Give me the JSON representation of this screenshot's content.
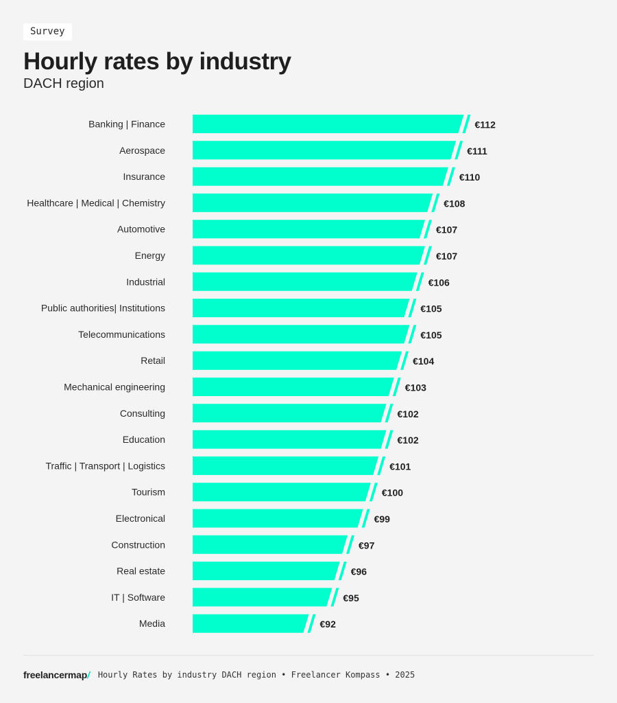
{
  "header": {
    "tag": "Survey",
    "title": "Hourly rates by industry",
    "subtitle": "DACH region"
  },
  "chart_data": {
    "type": "bar",
    "orientation": "horizontal",
    "categories": [
      "Banking | Finance",
      "Aerospace",
      "Insurance",
      "Healthcare | Medical | Chemistry",
      "Automotive",
      "Energy",
      "Industrial",
      "Public authorities| Institutions",
      "Telecommunications",
      "Retail",
      "Mechanical engineering",
      "Consulting",
      "Education",
      "Traffic | Transport | Logistics",
      "Tourism",
      "Electronical",
      "Construction",
      "Real estate",
      "IT | Software",
      "Media"
    ],
    "values": [
      112,
      111,
      110,
      108,
      107,
      107,
      106,
      105,
      105,
      104,
      103,
      102,
      102,
      101,
      100,
      99,
      97,
      96,
      95,
      92
    ],
    "value_labels": [
      "€112",
      "€111",
      "€110",
      "€108",
      "€107",
      "€107",
      "€106",
      "€105",
      "€105",
      "€104",
      "€103",
      "€102",
      "€102",
      "€101",
      "€100",
      "€99",
      "€97",
      "€96",
      "€95",
      "€92"
    ],
    "title": "Hourly rates by industry",
    "subtitle": "DACH region",
    "xlabel": "",
    "ylabel": "",
    "axis_break": true,
    "grid": false,
    "bar_color": "#00ffcc"
  },
  "footer": {
    "brand": "freelancermap",
    "brand_mark": "/",
    "source": "Hourly Rates by industry DACH region • Freelancer Kompass • 2025"
  }
}
